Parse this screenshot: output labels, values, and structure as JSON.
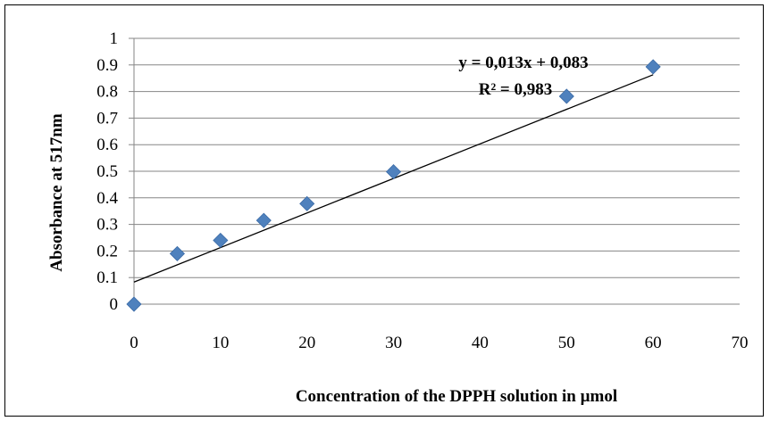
{
  "chart_data": {
    "type": "scatter",
    "title": "",
    "xlabel": "Concentration of the DPPH solution in µmol",
    "ylabel": "Absorbance at  517nm",
    "xlim": [
      0,
      70
    ],
    "ylim": [
      0,
      1
    ],
    "x_ticks": [
      0,
      10,
      20,
      30,
      40,
      50,
      60,
      70
    ],
    "y_ticks": [
      0,
      0.1,
      0.2,
      0.3,
      0.4,
      0.5,
      0.6,
      0.7,
      0.8,
      0.9,
      1
    ],
    "grid": "horizontal",
    "marker": "diamond",
    "marker_color": "#4f81bd",
    "series": [
      {
        "x": [
          0,
          5,
          10,
          15,
          20,
          30,
          50,
          60
        ],
        "y": [
          0,
          0.19,
          0.24,
          0.315,
          0.378,
          0.498,
          0.782,
          0.893
        ]
      }
    ],
    "trendline": {
      "type": "linear",
      "slope": 0.013,
      "intercept": 0.083,
      "x_range": [
        0,
        60
      ],
      "equation_label": "y = 0,013x + 0,083",
      "r2_label": "R² = 0,983"
    }
  }
}
